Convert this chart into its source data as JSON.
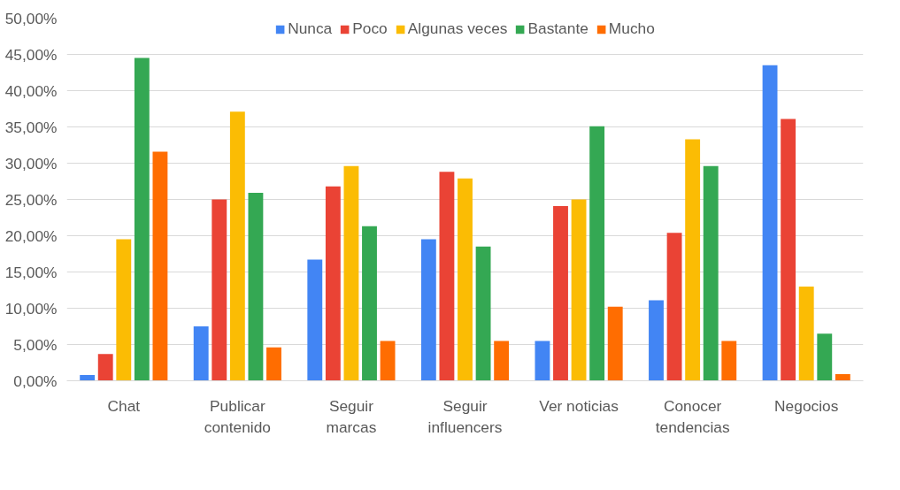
{
  "chart_data": {
    "type": "bar",
    "categories": [
      "Chat",
      "Publicar\ncontenido",
      "Seguir\nmarcas",
      "Seguir\ninfluencers",
      "Ver noticias",
      "Conocer\ntendencias",
      "Negocios"
    ],
    "series": [
      {
        "name": "Nunca",
        "color": "#4285f4",
        "values": [
          0.8,
          7.5,
          16.7,
          19.5,
          5.5,
          11.1,
          43.5
        ]
      },
      {
        "name": "Poco",
        "color": "#ea4335",
        "values": [
          3.7,
          25.0,
          26.8,
          28.8,
          24.1,
          20.4,
          36.1
        ]
      },
      {
        "name": "Algunas veces",
        "color": "#fbbc04",
        "values": [
          19.5,
          37.1,
          29.6,
          27.9,
          25.0,
          33.3,
          13.0
        ]
      },
      {
        "name": "Bastante",
        "color": "#34a853",
        "values": [
          44.5,
          25.9,
          21.3,
          18.5,
          35.1,
          29.6,
          6.5
        ]
      },
      {
        "name": "Mucho",
        "color": "#ff6d01",
        "values": [
          31.6,
          4.6,
          5.5,
          5.5,
          10.2,
          5.5,
          0.9
        ]
      }
    ],
    "ylim": [
      0,
      50
    ],
    "yticks": [
      {
        "value": 0,
        "label": "0,00%"
      },
      {
        "value": 5,
        "label": "5,00%"
      },
      {
        "value": 10,
        "label": "10,00%"
      },
      {
        "value": 15,
        "label": "15,00%"
      },
      {
        "value": 20,
        "label": "20,00%"
      },
      {
        "value": 25,
        "label": "25,00%"
      },
      {
        "value": 30,
        "label": "30,00%"
      },
      {
        "value": 35,
        "label": "35,00%"
      },
      {
        "value": 40,
        "label": "40,00%"
      },
      {
        "value": 45,
        "label": "45,00%"
      },
      {
        "value": 50,
        "label": "50,00%"
      }
    ],
    "grid": "y",
    "legend": "top"
  }
}
